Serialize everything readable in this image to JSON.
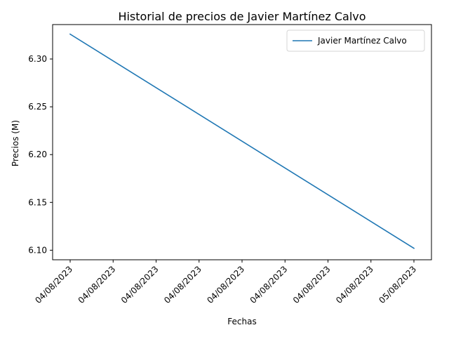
{
  "chart_data": {
    "type": "line",
    "title": "Historial de precios de Javier Martínez Calvo",
    "xlabel": "Fechas",
    "ylabel": "Precios (M)",
    "x_tick_labels": [
      "04/08/2023",
      "04/08/2023",
      "04/08/2023",
      "04/08/2023",
      "04/08/2023",
      "04/08/2023",
      "04/08/2023",
      "04/08/2023",
      "05/08/2023"
    ],
    "y_ticks": [
      6.1,
      6.15,
      6.2,
      6.25,
      6.3
    ],
    "ylim": [
      6.09,
      6.336
    ],
    "x_tick_rotation_deg": 45,
    "grid": false,
    "legend": "top-right",
    "series": [
      {
        "name": "Javier Martínez Calvo",
        "color": "#1f77b4",
        "points": [
          {
            "x_index": 0,
            "y": 6.326
          },
          {
            "x_index": 8,
            "y": 6.102
          }
        ]
      }
    ]
  }
}
